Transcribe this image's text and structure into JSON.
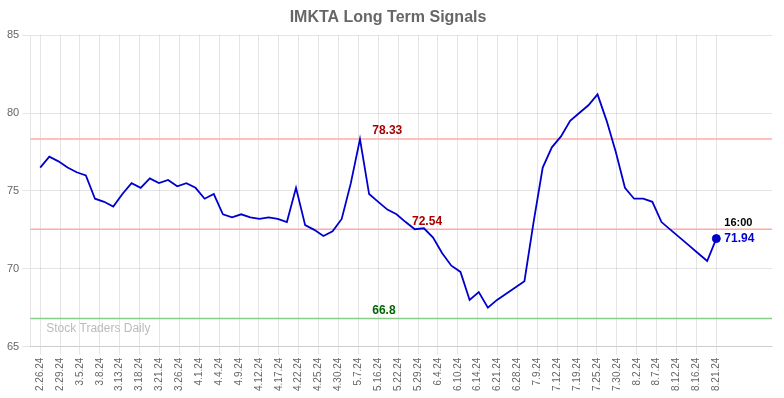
{
  "chart_data": {
    "type": "line",
    "title": "IMKTA Long Term Signals",
    "series": [
      {
        "color": "#0000cc",
        "x": [
          0,
          0.4595,
          0.9189,
          1.3784,
          1.8378,
          2.2973,
          2.7568,
          3.2162,
          3.6757,
          4.1351,
          4.5946,
          5.0541,
          5.5135,
          5.973,
          6.4324,
          6.8919,
          7.3514,
          7.8108,
          8.2703,
          8.7297,
          9.1892,
          9.6486,
          10.1081,
          10.5676,
          11.027,
          11.4865,
          11.9459,
          12.4054,
          12.8649,
          13.3243,
          13.7838,
          14.2432,
          14.7027,
          15.1622,
          15.6216,
          16.0811,
          16.5405,
          17,
          17.4595,
          17.9189,
          18.3784,
          18.8378,
          19.2973,
          19.7568,
          20.2162,
          20.6757,
          21.1351,
          21.5946,
          22.0541,
          22.5135,
          22.973,
          23.4324,
          23.8919,
          24.3514,
          24.8108,
          25.2703,
          25.7297,
          26.1892,
          26.6486,
          27.1081,
          27.5676,
          28.027,
          28.4865,
          28.9459,
          29.4054,
          29.8649,
          30.3243,
          30.7838,
          31.2432,
          31.7027,
          32.1622,
          32.6216,
          33.0811,
          33.5405,
          34
        ],
        "values": [
          76.5,
          77.2,
          76.9,
          76.5,
          76.2,
          76.0,
          74.5,
          74.3,
          74.0,
          74.8,
          75.5,
          75.2,
          75.8,
          75.5,
          75.7,
          75.3,
          75.5,
          75.2,
          74.5,
          74.8,
          73.5,
          73.3,
          73.5,
          73.3,
          73.2,
          73.3,
          73.2,
          73.0,
          75.2,
          72.8,
          72.5,
          72.1,
          72.4,
          73.2,
          75.5,
          78.33,
          74.8,
          74.3,
          73.8,
          73.5,
          73.0,
          72.54,
          72.6,
          72.0,
          71.0,
          70.2,
          69.8,
          68.0,
          68.5,
          67.5,
          68.0,
          68.4,
          68.8,
          69.2,
          73.0,
          76.5,
          77.8,
          78.5,
          79.5,
          80.0,
          80.5,
          81.2,
          79.5,
          77.5,
          75.2,
          74.5,
          74.5,
          74.3,
          73.0,
          72.5,
          72.0,
          71.5,
          71.0,
          70.5,
          71.94
        ]
      }
    ],
    "hlines": [
      {
        "y": 78.33,
        "color": "#ffaaaa"
      },
      {
        "y": 72.54,
        "color": "#ffaaaa"
      },
      {
        "y": 66.8,
        "color": "#88cc88"
      }
    ],
    "annotations": [
      {
        "text": "78.33",
        "color": "#aa0000",
        "x": 17,
        "y": 78.33
      },
      {
        "text": "72.54",
        "color": "#aa0000",
        "x": 19,
        "y": 72.54
      },
      {
        "text": "66.8",
        "color": "#006600",
        "x": 17,
        "y": 66.8
      },
      {
        "text": "16:00",
        "color": "#000000",
        "x": 34,
        "y": 71.94
      },
      {
        "text": "71.94",
        "color": "#0000cc",
        "x": 34,
        "y": 71.94
      },
      {
        "text": "Stock Traders Daily",
        "color": "#bbbbbb",
        "x": 0,
        "y": 66.8
      }
    ],
    "xlim": [
      -0.5,
      36.8
    ],
    "xticks": [
      {
        "value": 0,
        "label": "2.26.24"
      },
      {
        "value": 1,
        "label": "2.29.24"
      },
      {
        "value": 2,
        "label": "3.5.24"
      },
      {
        "value": 3,
        "label": "3.8.24"
      },
      {
        "value": 4,
        "label": "3.13.24"
      },
      {
        "value": 5,
        "label": "3.18.24"
      },
      {
        "value": 6,
        "label": "3.21.24"
      },
      {
        "value": 7,
        "label": "3.26.24"
      },
      {
        "value": 8,
        "label": "4.1.24"
      },
      {
        "value": 9,
        "label": "4.4.24"
      },
      {
        "value": 10,
        "label": "4.9.24"
      },
      {
        "value": 11,
        "label": "4.12.24"
      },
      {
        "value": 12,
        "label": "4.17.24"
      },
      {
        "value": 13,
        "label": "4.22.24"
      },
      {
        "value": 14,
        "label": "4.25.24"
      },
      {
        "value": 15,
        "label": "4.30.24"
      },
      {
        "value": 16,
        "label": "5.7.24"
      },
      {
        "value": 17,
        "label": "5.16.24"
      },
      {
        "value": 18,
        "label": "5.22.24"
      },
      {
        "value": 19,
        "label": "5.29.24"
      },
      {
        "value": 20,
        "label": "6.4.24"
      },
      {
        "value": 21,
        "label": "6.10.24"
      },
      {
        "value": 22,
        "label": "6.14.24"
      },
      {
        "value": 23,
        "label": "6.21.24"
      },
      {
        "value": 24,
        "label": "6.28.24"
      },
      {
        "value": 25,
        "label": "7.9.24"
      },
      {
        "value": 26,
        "label": "7.12.24"
      },
      {
        "value": 27,
        "label": "7.19.24"
      },
      {
        "value": 28,
        "label": "7.25.24"
      },
      {
        "value": 29,
        "label": "7.30.24"
      },
      {
        "value": 30,
        "label": "8.2.24"
      },
      {
        "value": 31,
        "label": "8.7.24"
      },
      {
        "value": 32,
        "label": "8.12.24"
      },
      {
        "value": 33,
        "label": "8.16.24"
      },
      {
        "value": 34,
        "label": "8.21.24"
      }
    ],
    "ylim": [
      65,
      85
    ],
    "yticks": [
      65,
      70,
      75,
      80,
      85
    ],
    "grid": true
  }
}
